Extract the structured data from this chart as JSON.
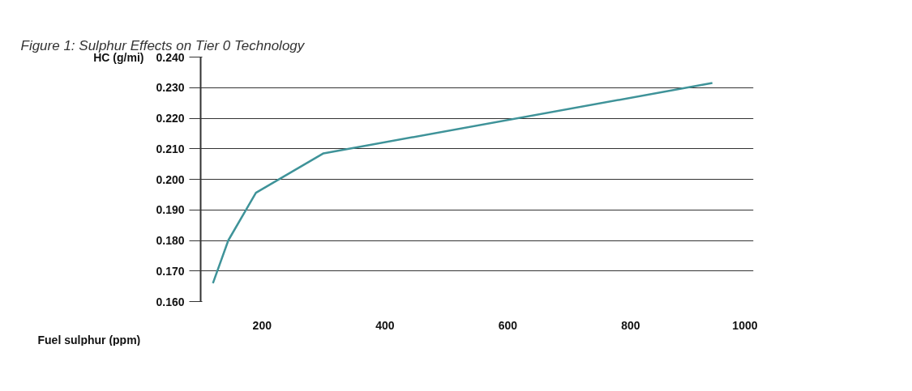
{
  "chart_data": {
    "type": "line",
    "title": "Figure 1: Sulphur Effects on Tier 0 Technology",
    "xlabel": "Fuel sulphur (ppm)",
    "ylabel": "HC (g/mi)",
    "x": [
      120,
      145,
      190,
      300,
      933
    ],
    "series": [
      {
        "color": "#3f9399",
        "values": [
          0.166,
          0.18,
          0.1956,
          0.2085,
          0.2315
        ]
      }
    ],
    "xlim": [
      100,
      1000
    ],
    "xticks": [
      200,
      400,
      600,
      800,
      1000
    ],
    "ylim": [
      0.16,
      0.24
    ],
    "yticks": [
      {
        "value": 0.16,
        "label": "0.160"
      },
      {
        "value": 0.17,
        "label": "0.170"
      },
      {
        "value": 0.18,
        "label": "0.180"
      },
      {
        "value": 0.19,
        "label": "0.190"
      },
      {
        "value": 0.2,
        "label": "0.200"
      },
      {
        "value": 0.21,
        "label": "0.210"
      },
      {
        "value": 0.22,
        "label": "0.220"
      },
      {
        "value": 0.23,
        "label": "0.230"
      },
      {
        "value": 0.24,
        "label": "0.240"
      }
    ],
    "grid": "y",
    "marker": "none",
    "line_style": "solid"
  }
}
